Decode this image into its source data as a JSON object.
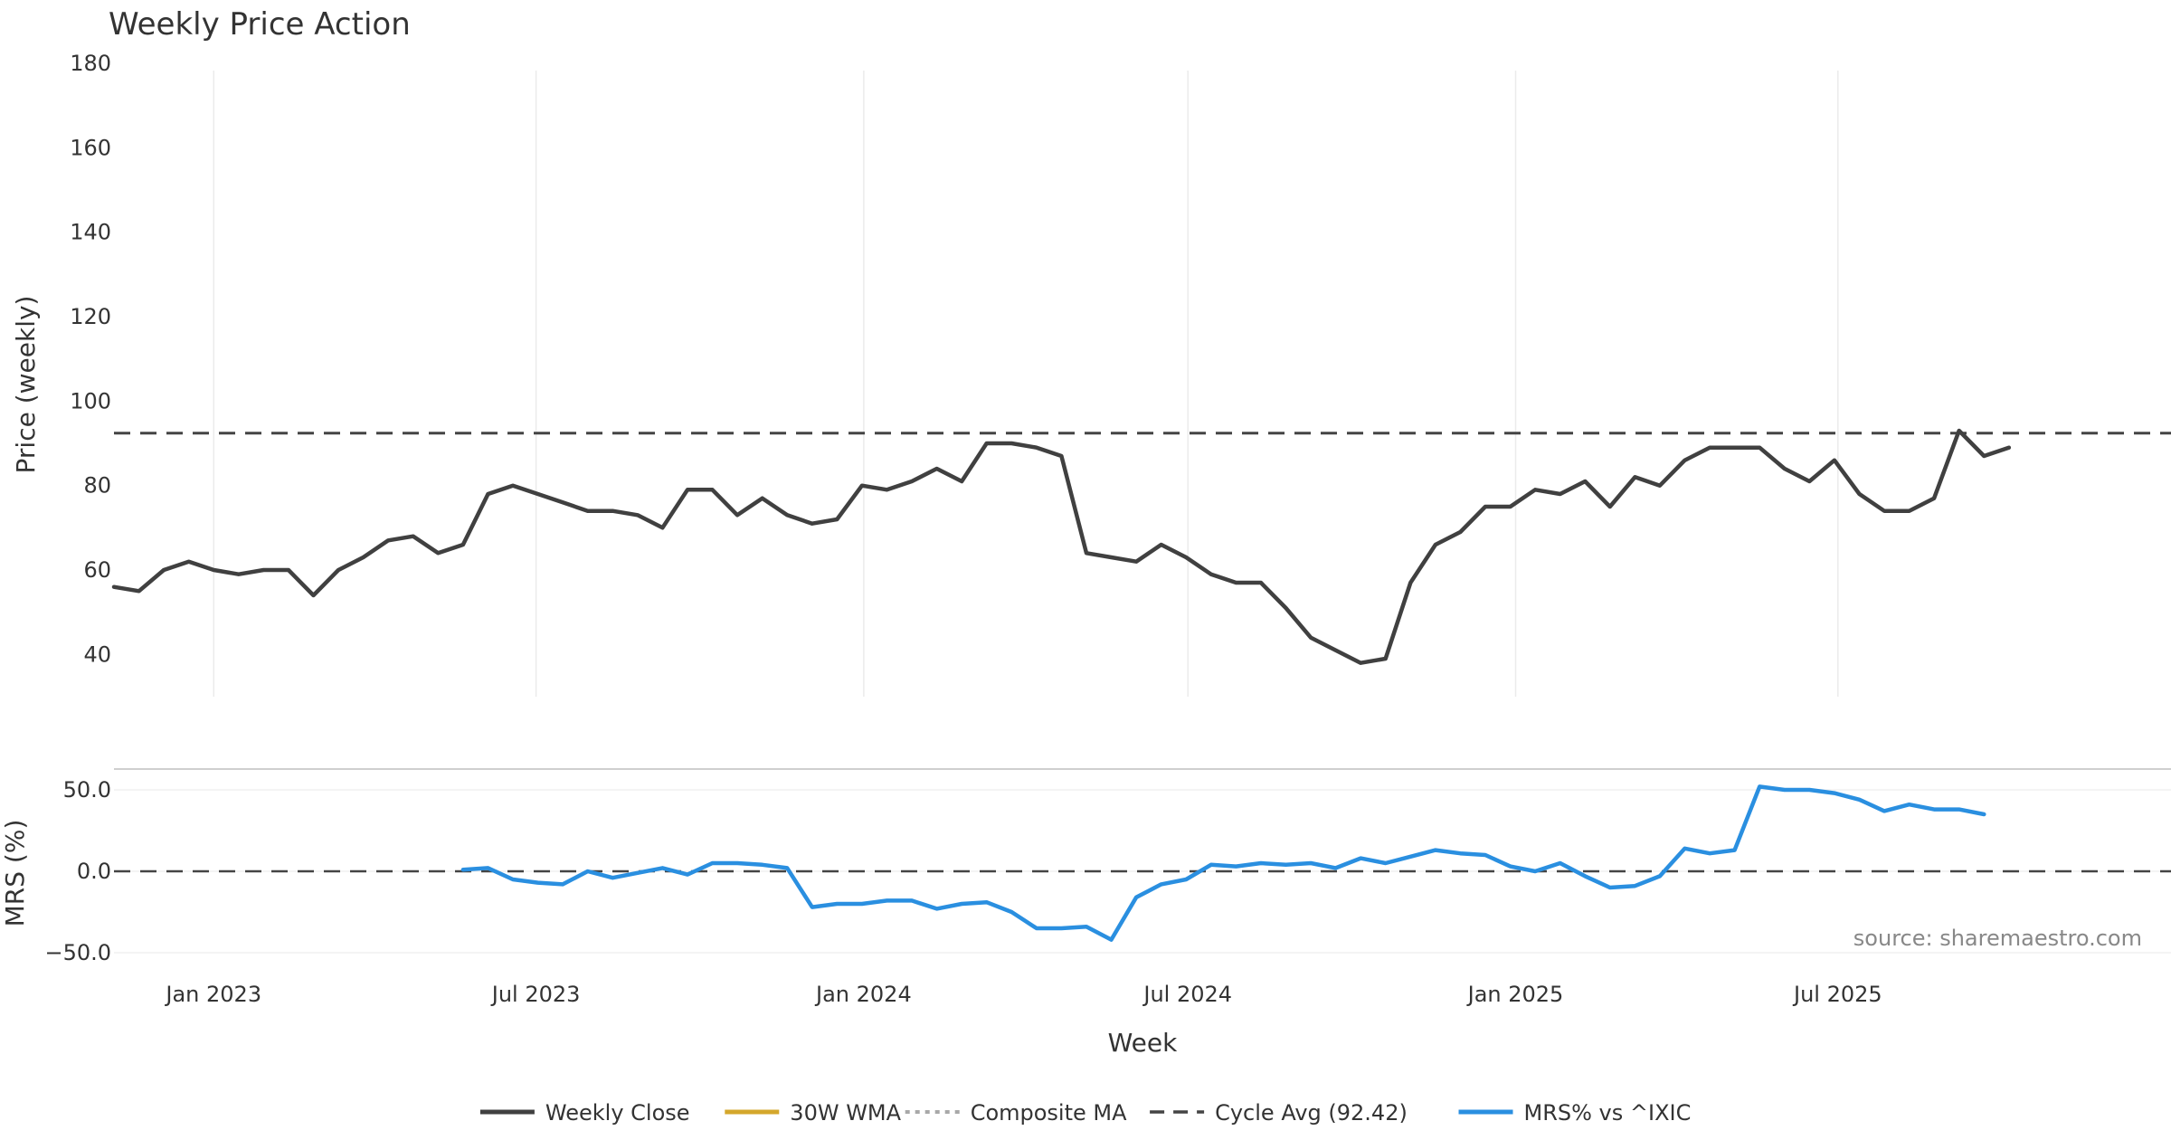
{
  "chart_data": [
    {
      "type": "line",
      "title": "Weekly Price Action",
      "ylabel": "Price (weekly)",
      "ylim": [
        30,
        180
      ],
      "yticks": [
        40,
        60,
        80,
        100,
        120,
        140,
        160,
        180
      ],
      "x_range": [
        "2022-11-06",
        "2026-01-04"
      ],
      "xticks": [
        {
          "date": "2023-01-01",
          "label": "Jan 2023"
        },
        {
          "date": "2023-07-01",
          "label": "Jul 2023"
        },
        {
          "date": "2024-01-01",
          "label": "Jan 2024"
        },
        {
          "date": "2024-07-01",
          "label": "Jul 2024"
        },
        {
          "date": "2025-01-01",
          "label": "Jan 2025"
        },
        {
          "date": "2025-07-01",
          "label": "Jul 2025"
        }
      ],
      "grid": "vertical",
      "hlines": [
        {
          "name": "Cycle Avg (92.42)",
          "value": 92.42,
          "style": "dashed",
          "color": "#444444"
        }
      ],
      "series": [
        {
          "name": "Weekly Close",
          "color": "#404040",
          "points": [
            [
              "2022-11-06",
              56
            ],
            [
              "2022-11-20",
              55
            ],
            [
              "2022-12-04",
              60
            ],
            [
              "2022-12-18",
              62
            ],
            [
              "2023-01-01",
              60
            ],
            [
              "2023-01-15",
              59
            ],
            [
              "2023-01-29",
              60
            ],
            [
              "2023-02-12",
              60
            ],
            [
              "2023-02-26",
              54
            ],
            [
              "2023-03-12",
              60
            ],
            [
              "2023-03-26",
              63
            ],
            [
              "2023-04-09",
              67
            ],
            [
              "2023-04-23",
              68
            ],
            [
              "2023-05-07",
              64
            ],
            [
              "2023-05-21",
              66
            ],
            [
              "2023-06-04",
              78
            ],
            [
              "2023-06-18",
              80
            ],
            [
              "2023-07-02",
              78
            ],
            [
              "2023-07-16",
              76
            ],
            [
              "2023-07-30",
              74
            ],
            [
              "2023-08-13",
              74
            ],
            [
              "2023-08-27",
              73
            ],
            [
              "2023-09-10",
              70
            ],
            [
              "2023-09-24",
              79
            ],
            [
              "2023-10-08",
              79
            ],
            [
              "2023-10-22",
              73
            ],
            [
              "2023-11-05",
              77
            ],
            [
              "2023-11-19",
              73
            ],
            [
              "2023-12-03",
              71
            ],
            [
              "2023-12-17",
              72
            ],
            [
              "2023-12-31",
              80
            ],
            [
              "2024-01-14",
              79
            ],
            [
              "2024-01-28",
              81
            ],
            [
              "2024-02-11",
              84
            ],
            [
              "2024-02-25",
              81
            ],
            [
              "2024-03-10",
              90
            ],
            [
              "2024-03-24",
              90
            ],
            [
              "2024-04-07",
              89
            ],
            [
              "2024-04-21",
              87
            ],
            [
              "2024-05-05",
              64
            ],
            [
              "2024-05-19",
              63
            ],
            [
              "2024-06-02",
              62
            ],
            [
              "2024-06-16",
              66
            ],
            [
              "2024-06-30",
              63
            ],
            [
              "2024-07-14",
              59
            ],
            [
              "2024-07-28",
              57
            ],
            [
              "2024-08-11",
              57
            ],
            [
              "2024-08-25",
              51
            ],
            [
              "2024-09-08",
              44
            ],
            [
              "2024-09-22",
              41
            ],
            [
              "2024-10-06",
              38
            ],
            [
              "2024-10-20",
              39
            ],
            [
              "2024-11-03",
              57
            ],
            [
              "2024-11-17",
              66
            ],
            [
              "2024-12-01",
              69
            ],
            [
              "2024-12-15",
              75
            ],
            [
              "2024-12-29",
              75
            ],
            [
              "2025-01-12",
              79
            ],
            [
              "2025-01-26",
              78
            ],
            [
              "2025-02-09",
              81
            ],
            [
              "2025-02-23",
              75
            ],
            [
              "2025-03-09",
              82
            ],
            [
              "2025-03-23",
              80
            ],
            [
              "2025-04-06",
              86
            ],
            [
              "2025-04-20",
              89
            ],
            [
              "2025-05-04",
              89
            ],
            [
              "2025-05-18",
              89
            ],
            [
              "2025-06-01",
              84
            ],
            [
              "2025-06-15",
              81
            ],
            [
              "2025-06-29",
              86
            ],
            [
              "2025-07-13",
              78
            ],
            [
              "2025-07-27",
              74
            ],
            [
              "2025-08-10",
              74
            ],
            [
              "2025-08-24",
              77
            ],
            [
              "2025-09-07",
              93
            ],
            [
              "2025-09-21",
              87
            ],
            [
              "2025-10-05",
              89
            ]
          ]
        }
      ]
    },
    {
      "type": "line",
      "ylabel": "MRS (%)",
      "ylim": [
        -55,
        60
      ],
      "yticks": [
        {
          "value": 50,
          "label": "50.0"
        },
        {
          "value": 0,
          "label": "0.0"
        },
        {
          "value": -50,
          "label": "−50.0"
        }
      ],
      "xlabel": "Week",
      "annotation": "source: sharemaestro.com",
      "hlines": [
        {
          "value": 0,
          "style": "dashed",
          "color": "#444444"
        }
      ],
      "series": [
        {
          "name": "MRS% vs ^IXIC",
          "color": "#2a8fe0",
          "points": [
            [
              "2023-05-21",
              1
            ],
            [
              "2023-06-04",
              2
            ],
            [
              "2023-06-18",
              -5
            ],
            [
              "2023-07-02",
              -7
            ],
            [
              "2023-07-16",
              -8
            ],
            [
              "2023-07-30",
              0
            ],
            [
              "2023-08-13",
              -4
            ],
            [
              "2023-08-27",
              -1
            ],
            [
              "2023-09-10",
              2
            ],
            [
              "2023-09-24",
              -2
            ],
            [
              "2023-10-08",
              5
            ],
            [
              "2023-10-22",
              5
            ],
            [
              "2023-11-05",
              4
            ],
            [
              "2023-11-19",
              2
            ],
            [
              "2023-12-03",
              -22
            ],
            [
              "2023-12-17",
              -20
            ],
            [
              "2023-12-31",
              -20
            ],
            [
              "2024-01-14",
              -18
            ],
            [
              "2024-01-28",
              -18
            ],
            [
              "2024-02-11",
              -23
            ],
            [
              "2024-02-25",
              -20
            ],
            [
              "2024-03-10",
              -19
            ],
            [
              "2024-03-24",
              -25
            ],
            [
              "2024-04-07",
              -35
            ],
            [
              "2024-04-21",
              -35
            ],
            [
              "2024-05-05",
              -34
            ],
            [
              "2024-05-19",
              -42
            ],
            [
              "2024-06-02",
              -16
            ],
            [
              "2024-06-16",
              -8
            ],
            [
              "2024-06-30",
              -5
            ],
            [
              "2024-07-14",
              4
            ],
            [
              "2024-07-28",
              3
            ],
            [
              "2024-08-11",
              5
            ],
            [
              "2024-08-25",
              4
            ],
            [
              "2024-09-08",
              5
            ],
            [
              "2024-09-22",
              2
            ],
            [
              "2024-10-06",
              8
            ],
            [
              "2024-10-20",
              5
            ],
            [
              "2024-11-03",
              9
            ],
            [
              "2024-11-17",
              13
            ],
            [
              "2024-12-01",
              11
            ],
            [
              "2024-12-15",
              10
            ],
            [
              "2024-12-29",
              3
            ],
            [
              "2025-01-12",
              0
            ],
            [
              "2025-01-26",
              5
            ],
            [
              "2025-02-09",
              -3
            ],
            [
              "2025-02-23",
              -10
            ],
            [
              "2025-03-09",
              -9
            ],
            [
              "2025-03-23",
              -3
            ],
            [
              "2025-04-06",
              14
            ],
            [
              "2025-04-20",
              11
            ],
            [
              "2025-05-04",
              13
            ],
            [
              "2025-05-18",
              52
            ],
            [
              "2025-06-01",
              50
            ],
            [
              "2025-06-15",
              50
            ],
            [
              "2025-06-29",
              48
            ],
            [
              "2025-07-13",
              44
            ],
            [
              "2025-07-27",
              37
            ],
            [
              "2025-08-10",
              41
            ],
            [
              "2025-08-24",
              38
            ],
            [
              "2025-09-07",
              38
            ],
            [
              "2025-09-21",
              35
            ]
          ]
        }
      ]
    }
  ],
  "legend": {
    "placement": "bottom-center",
    "items": [
      {
        "label": "Weekly Close",
        "style": "solid",
        "color": "#404040"
      },
      {
        "label": "30W WMA",
        "style": "solid",
        "color": "#d4a72c"
      },
      {
        "label": "Composite MA",
        "style": "dotted",
        "color": "#a8a8a8"
      },
      {
        "label": "Cycle Avg (92.42)",
        "style": "dashed",
        "color": "#444444"
      },
      {
        "label": "MRS% vs ^IXIC",
        "style": "solid",
        "color": "#2a8fe0"
      }
    ]
  }
}
